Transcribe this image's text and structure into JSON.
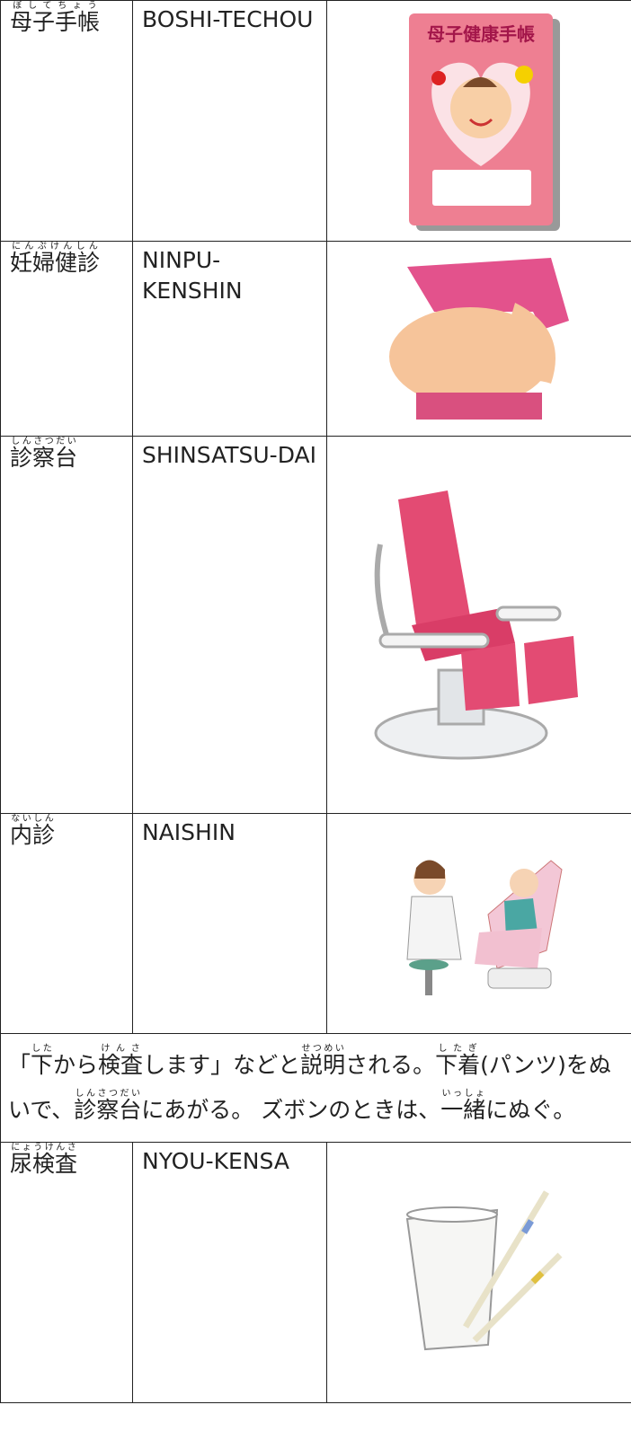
{
  "table": {
    "rows": [
      {
        "term": {
          "text": "母子手帳",
          "ruby": "ぼしてちょう"
        },
        "romaji": "BOSHI-TECHOU",
        "image_text": "母子健康手帳"
      },
      {
        "term": {
          "text": "妊婦健診",
          "ruby": "にんぷけんしん"
        },
        "romaji": "NINPU-KENSHIN"
      },
      {
        "term": {
          "text": "診察台",
          "ruby": "しんさつだい"
        },
        "romaji": "SHINSATSU-DAI"
      },
      {
        "term": {
          "text": "内診",
          "ruby": "ないしん"
        },
        "romaji": "NAISHIN"
      },
      {
        "term": {
          "text": "尿検査",
          "ruby": "にょうけんさ"
        },
        "romaji": "NYOU-KENSA"
      }
    ],
    "note": [
      {
        "text": "「"
      },
      {
        "text": "下",
        "ruby": "した"
      },
      {
        "text": "から"
      },
      {
        "text": "検査",
        "ruby": "けんさ"
      },
      {
        "text": "します」などと"
      },
      {
        "text": "説明",
        "ruby": "せつめい"
      },
      {
        "text": "される。"
      },
      {
        "text": "下着",
        "ruby": "したぎ"
      },
      {
        "text": "(パンツ)をぬいで、"
      },
      {
        "text": "診察台",
        "ruby": "しんさつだい"
      },
      {
        "text": "にあがる。 ズボンのときは、"
      },
      {
        "text": "一緒",
        "ruby": "いっしょ"
      },
      {
        "text": "にぬぐ。"
      }
    ]
  }
}
